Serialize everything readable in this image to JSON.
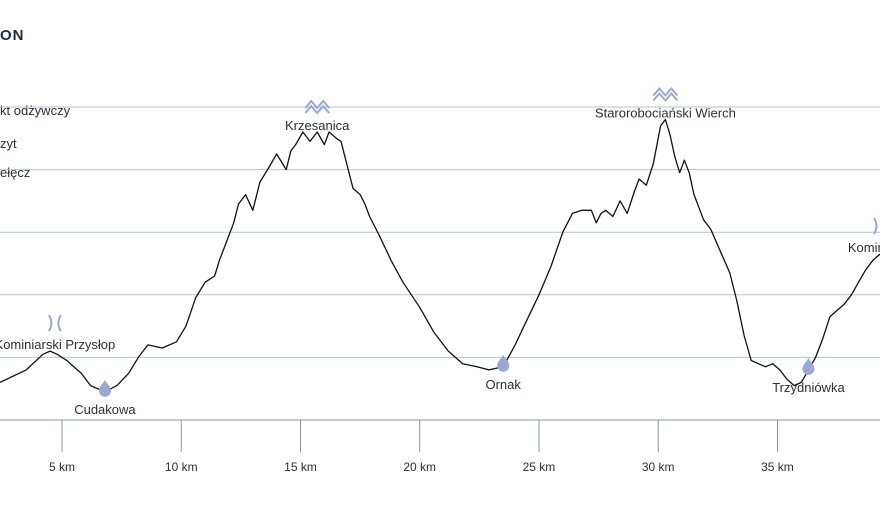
{
  "title": "ON",
  "legend": [
    {
      "label": "kt odżywczy",
      "icon": "nutrition-point-icon"
    },
    {
      "label": "zyt",
      "icon": "summit-icon"
    },
    {
      "label": "ełęcz",
      "icon": "pass-icon"
    }
  ],
  "colors": {
    "grid": "#b9c3cf",
    "line": "#111111",
    "icon": "#9aa9d3",
    "text": "#2a2f38"
  },
  "chart_data": {
    "type": "line",
    "x_unit": "km",
    "xlim": [
      2.4,
      39.3
    ],
    "xticks": [
      5,
      10,
      15,
      20,
      25,
      30,
      35
    ],
    "xtick_labels": [
      "5 km",
      "10 km",
      "15 km",
      "20 km",
      "25 km",
      "30 km",
      "35 km"
    ],
    "ylim": [
      0,
      6.8
    ],
    "gridlines": [
      0,
      1,
      2,
      3,
      4,
      5
    ],
    "grid": true,
    "series": [
      {
        "x": [
          2.4,
          3.5,
          4.2,
          4.5,
          4.8,
          5.2,
          5.8,
          6.2,
          6.8,
          7.3,
          7.8,
          8.2,
          8.6,
          9.2,
          9.8,
          10.2,
          10.6,
          11.0,
          11.4,
          11.6,
          11.9,
          12.2,
          12.4,
          12.7,
          13.0,
          13.3,
          13.7,
          14.0,
          14.4,
          14.6,
          14.8,
          15.1,
          15.4,
          15.7,
          16.0,
          16.2,
          16.5,
          16.7,
          16.9,
          17.2,
          17.5,
          17.7,
          17.9,
          18.3,
          18.8,
          19.3,
          20.0,
          20.6,
          21.2,
          21.8,
          22.4,
          22.9,
          23.5,
          24.0,
          24.5,
          25.0,
          25.5,
          26.0,
          26.4,
          26.8,
          27.2,
          27.4,
          27.6,
          27.8,
          28.1,
          28.4,
          28.7,
          29.0,
          29.2,
          29.5,
          29.8,
          30.1,
          30.3,
          30.5,
          30.7,
          30.9,
          31.1,
          31.3,
          31.5,
          31.7,
          31.9,
          32.2,
          32.6,
          33.0,
          33.3,
          33.6,
          33.9,
          34.2,
          34.5,
          34.8,
          35.1,
          35.4,
          35.7,
          36.0,
          36.3,
          36.6,
          36.9,
          37.2,
          37.5,
          37.8,
          38.1,
          38.4,
          38.7,
          39.0,
          39.3
        ],
        "y": [
          0.6,
          0.8,
          1.05,
          1.1,
          1.05,
          0.95,
          0.75,
          0.55,
          0.45,
          0.55,
          0.75,
          1.0,
          1.2,
          1.15,
          1.25,
          1.5,
          1.95,
          2.2,
          2.3,
          2.55,
          2.85,
          3.15,
          3.45,
          3.6,
          3.35,
          3.8,
          4.05,
          4.25,
          4.0,
          4.3,
          4.4,
          4.6,
          4.45,
          4.6,
          4.4,
          4.6,
          4.5,
          4.45,
          4.15,
          3.7,
          3.6,
          3.45,
          3.25,
          2.95,
          2.55,
          2.2,
          1.8,
          1.4,
          1.1,
          0.9,
          0.85,
          0.8,
          0.85,
          1.2,
          1.6,
          2.0,
          2.45,
          3.0,
          3.3,
          3.35,
          3.35,
          3.15,
          3.3,
          3.35,
          3.25,
          3.5,
          3.3,
          3.65,
          3.85,
          3.75,
          4.1,
          4.7,
          4.8,
          4.55,
          4.2,
          3.95,
          4.15,
          3.95,
          3.6,
          3.4,
          3.2,
          3.05,
          2.7,
          2.35,
          1.9,
          1.35,
          0.95,
          0.9,
          0.85,
          0.9,
          0.8,
          0.65,
          0.55,
          0.6,
          0.8,
          1.0,
          1.3,
          1.65,
          1.75,
          1.85,
          2.0,
          2.2,
          2.4,
          2.55,
          2.65
        ]
      }
    ],
    "points": [
      {
        "x": 4.7,
        "y": 1.1,
        "kind": "pass",
        "label": "Kominiarski Przysłop",
        "icon": "pass-icon"
      },
      {
        "x": 6.8,
        "y": 0.45,
        "kind": "nutrition",
        "label": "Cudakowa",
        "icon": "water-drop-icon"
      },
      {
        "x": 15.7,
        "y": 4.6,
        "kind": "summit",
        "label": "Krzesanica",
        "icon": "summit-icon"
      },
      {
        "x": 23.5,
        "y": 0.85,
        "kind": "nutrition",
        "label": "Ornak",
        "icon": "water-drop-icon"
      },
      {
        "x": 30.3,
        "y": 4.8,
        "kind": "summit",
        "label": "Starorobociański Wierch",
        "icon": "summit-icon"
      },
      {
        "x": 36.3,
        "y": 0.8,
        "kind": "nutrition",
        "label": "Trzydniówka",
        "icon": "water-drop-icon"
      },
      {
        "x": 39.3,
        "y": 2.65,
        "kind": "pass",
        "label": "Kominiarsk",
        "icon": "pass-icon"
      }
    ]
  }
}
